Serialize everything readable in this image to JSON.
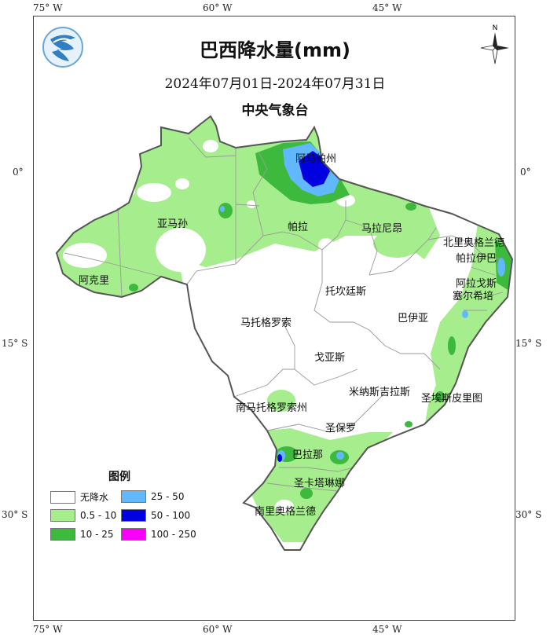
{
  "title": "巴西降水量(mm)",
  "period": "2024年07月01日-2024年07月31日",
  "agency": "中央气象台",
  "coords": {
    "top": [
      "75° W",
      "60° W",
      "45° W"
    ],
    "bottom": [
      "75° W",
      "60° W",
      "45° W"
    ],
    "left": [
      "0°",
      "15° S",
      "30° S"
    ],
    "right": [
      "0°",
      "15° S",
      "30° S"
    ]
  },
  "compass": {
    "north_label": "N"
  },
  "logo_icon": "cma-logo-icon",
  "states": [
    "阿马帕州",
    "亚马孙",
    "帕拉",
    "马拉尼昂",
    "北里奥格兰德",
    "帕拉伊巴",
    "阿克里",
    "阿拉戈斯",
    "塞尔希培",
    "托坎廷斯",
    "马托格罗索",
    "巴伊亚",
    "戈亚斯",
    "米纳斯吉拉斯",
    "南马托格罗索州",
    "圣埃斯皮里图",
    "圣保罗",
    "巴拉那",
    "圣卡塔琳娜",
    "南里奥格兰德"
  ],
  "legend": {
    "title": "图例",
    "items": [
      {
        "label": "无降水",
        "color": "#ffffff"
      },
      {
        "label": "0.5 - 10",
        "color": "#a6ed8e"
      },
      {
        "label": "10  - 25",
        "color": "#3dba3d"
      },
      {
        "label": "25  - 50",
        "color": "#61b8ff"
      },
      {
        "label": "50  - 100",
        "color": "#0000e1"
      },
      {
        "label": "100 - 250",
        "color": "#fa00fa"
      }
    ]
  }
}
